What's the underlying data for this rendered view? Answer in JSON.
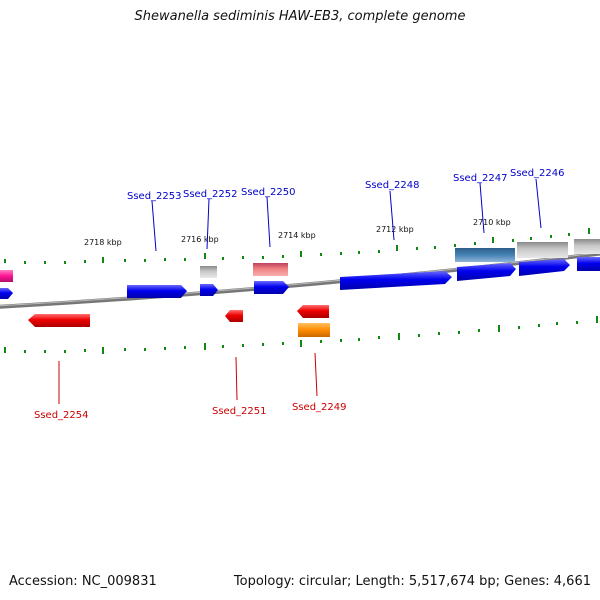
{
  "title": "Shewanella sediminis HAW-EB3, complete genome",
  "footer": {
    "accession": "Accession: NC_009831",
    "summary": "Topology: circular; Length: 5,517,674 bp; Genes: 4,661"
  },
  "colors": {
    "forward_label": "#0000cc",
    "reverse_label": "#cc0000",
    "forward_gene": "#0000ee",
    "reverse_gene": "#ee0000",
    "tick": "#118811",
    "backbone": "#808080"
  },
  "scale_labels": [
    "2718 kbp",
    "2716 kbp",
    "2714 kbp",
    "2712 kbp",
    "2710 kbp"
  ],
  "gene_labels": {
    "forward": [
      "Ssed_2253",
      "Ssed_2252",
      "Ssed_2250",
      "Ssed_2248",
      "Ssed_2247",
      "Ssed_2246"
    ],
    "reverse": [
      "Ssed_2254",
      "Ssed_2251",
      "Ssed_2249"
    ]
  }
}
